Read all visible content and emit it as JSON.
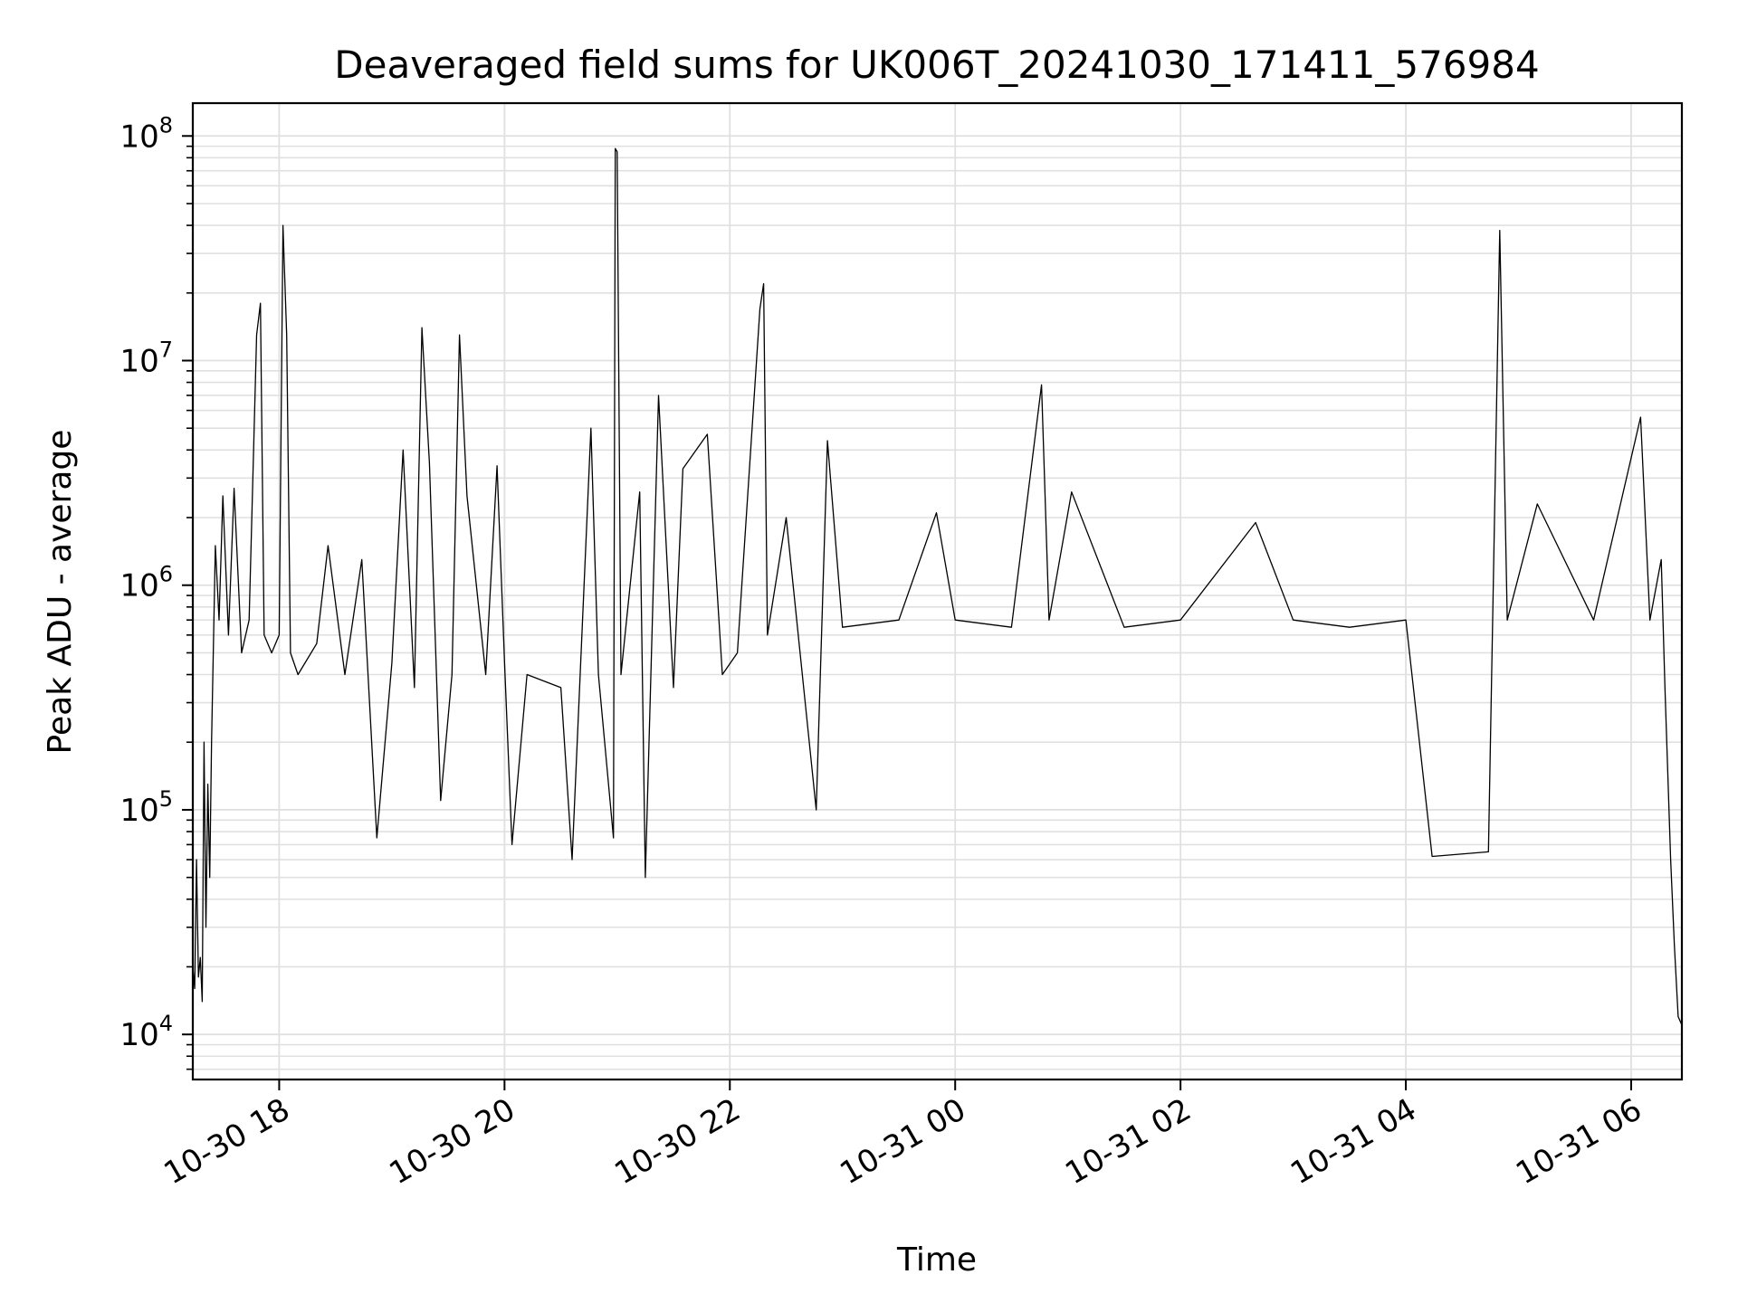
{
  "chart_data": {
    "type": "line",
    "title": "Deaveraged field sums for UK006T_20241030_171411_576984",
    "xlabel": "Time",
    "ylabel": "Peak ADU - average",
    "y_scale": "log",
    "ylim": [
      6300,
      140000000
    ],
    "xlim": [
      "2024-10-30 17:14",
      "2024-10-31 06:27"
    ],
    "grid": true,
    "grid_minor": true,
    "line_color": "#000000",
    "grid_color": "#e0e0e0",
    "x_ticks": [
      {
        "t": "2024-10-30 18:00",
        "label": "10-30 18"
      },
      {
        "t": "2024-10-30 20:00",
        "label": "10-30 20"
      },
      {
        "t": "2024-10-30 22:00",
        "label": "10-30 22"
      },
      {
        "t": "2024-10-31 00:00",
        "label": "10-31 00"
      },
      {
        "t": "2024-10-31 02:00",
        "label": "10-31 02"
      },
      {
        "t": "2024-10-31 04:00",
        "label": "10-31 04"
      },
      {
        "t": "2024-10-31 06:00",
        "label": "10-31 06"
      }
    ],
    "y_ticks": [
      {
        "value": 10000,
        "base": "10",
        "exp": "4"
      },
      {
        "value": 100000,
        "base": "10",
        "exp": "5"
      },
      {
        "value": 1000000,
        "base": "10",
        "exp": "6"
      },
      {
        "value": 10000000,
        "base": "10",
        "exp": "7"
      },
      {
        "value": 100000000,
        "base": "10",
        "exp": "8"
      }
    ],
    "series": [
      {
        "points": [
          [
            "2024-10-30 17:14",
            20000
          ],
          [
            "2024-10-30 17:15",
            16000
          ],
          [
            "2024-10-30 17:16",
            60000
          ],
          [
            "2024-10-30 17:17",
            18000
          ],
          [
            "2024-10-30 17:18",
            22000
          ],
          [
            "2024-10-30 17:19",
            14000
          ],
          [
            "2024-10-30 17:20",
            200000
          ],
          [
            "2024-10-30 17:21",
            30000
          ],
          [
            "2024-10-30 17:22",
            130000
          ],
          [
            "2024-10-30 17:23",
            50000
          ],
          [
            "2024-10-30 17:24",
            200000
          ],
          [
            "2024-10-30 17:26",
            1500000
          ],
          [
            "2024-10-30 17:28",
            700000
          ],
          [
            "2024-10-30 17:30",
            2500000
          ],
          [
            "2024-10-30 17:33",
            600000
          ],
          [
            "2024-10-30 17:36",
            2700000
          ],
          [
            "2024-10-30 17:40",
            500000
          ],
          [
            "2024-10-30 17:44",
            700000
          ],
          [
            "2024-10-30 17:48",
            13000000
          ],
          [
            "2024-10-30 17:50",
            18000000
          ],
          [
            "2024-10-30 17:52",
            600000
          ],
          [
            "2024-10-30 17:56",
            500000
          ],
          [
            "2024-10-30 18:00",
            600000
          ],
          [
            "2024-10-30 18:02",
            40000000
          ],
          [
            "2024-10-30 18:04",
            13000000
          ],
          [
            "2024-10-30 18:06",
            500000
          ],
          [
            "2024-10-30 18:10",
            400000
          ],
          [
            "2024-10-30 18:20",
            550000
          ],
          [
            "2024-10-30 18:26",
            1500000
          ],
          [
            "2024-10-30 18:35",
            400000
          ],
          [
            "2024-10-30 18:44",
            1300000
          ],
          [
            "2024-10-30 18:52",
            75000
          ],
          [
            "2024-10-30 19:00",
            450000
          ],
          [
            "2024-10-30 19:06",
            4000000
          ],
          [
            "2024-10-30 19:12",
            350000
          ],
          [
            "2024-10-30 19:16",
            14000000
          ],
          [
            "2024-10-30 19:20",
            3500000
          ],
          [
            "2024-10-30 19:26",
            110000
          ],
          [
            "2024-10-30 19:32",
            400000
          ],
          [
            "2024-10-30 19:36",
            13000000
          ],
          [
            "2024-10-30 19:40",
            2500000
          ],
          [
            "2024-10-30 19:50",
            400000
          ],
          [
            "2024-10-30 19:56",
            3400000
          ],
          [
            "2024-10-30 20:00",
            450000
          ],
          [
            "2024-10-30 20:04",
            70000
          ],
          [
            "2024-10-30 20:12",
            400000
          ],
          [
            "2024-10-30 20:30",
            350000
          ],
          [
            "2024-10-30 20:36",
            60000
          ],
          [
            "2024-10-30 20:46",
            5000000
          ],
          [
            "2024-10-30 20:50",
            400000
          ],
          [
            "2024-10-30 20:58",
            75000
          ],
          [
            "2024-10-30 20:59",
            88000000
          ],
          [
            "2024-10-30 21:00",
            85000000
          ],
          [
            "2024-10-30 21:02",
            400000
          ],
          [
            "2024-10-30 21:12",
            2600000
          ],
          [
            "2024-10-30 21:15",
            50000
          ],
          [
            "2024-10-30 21:22",
            7000000
          ],
          [
            "2024-10-30 21:30",
            350000
          ],
          [
            "2024-10-30 21:35",
            3300000
          ],
          [
            "2024-10-30 21:48",
            4700000
          ],
          [
            "2024-10-30 21:56",
            400000
          ],
          [
            "2024-10-30 22:04",
            500000
          ],
          [
            "2024-10-30 22:16",
            17000000
          ],
          [
            "2024-10-30 22:18",
            22000000
          ],
          [
            "2024-10-30 22:20",
            600000
          ],
          [
            "2024-10-30 22:30",
            2000000
          ],
          [
            "2024-10-30 22:46",
            100000
          ],
          [
            "2024-10-30 22:52",
            4400000
          ],
          [
            "2024-10-30 23:00",
            650000
          ],
          [
            "2024-10-30 23:30",
            700000
          ],
          [
            "2024-10-30 23:50",
            2100000
          ],
          [
            "2024-10-31 00:00",
            700000
          ],
          [
            "2024-10-31 00:30",
            650000
          ],
          [
            "2024-10-31 00:46",
            7800000
          ],
          [
            "2024-10-31 00:50",
            700000
          ],
          [
            "2024-10-31 01:02",
            2600000
          ],
          [
            "2024-10-31 01:30",
            650000
          ],
          [
            "2024-10-31 02:00",
            700000
          ],
          [
            "2024-10-31 02:40",
            1900000
          ],
          [
            "2024-10-31 03:00",
            700000
          ],
          [
            "2024-10-31 03:30",
            650000
          ],
          [
            "2024-10-31 04:00",
            700000
          ],
          [
            "2024-10-31 04:14",
            62000
          ],
          [
            "2024-10-31 04:44",
            65000
          ],
          [
            "2024-10-31 04:50",
            38000000
          ],
          [
            "2024-10-31 04:54",
            700000
          ],
          [
            "2024-10-31 05:10",
            2300000
          ],
          [
            "2024-10-31 05:40",
            700000
          ],
          [
            "2024-10-31 06:05",
            5600000
          ],
          [
            "2024-10-31 06:10",
            700000
          ],
          [
            "2024-10-31 06:16",
            1300000
          ],
          [
            "2024-10-31 06:18",
            350000
          ],
          [
            "2024-10-31 06:21",
            60000
          ],
          [
            "2024-10-31 06:23",
            25000
          ],
          [
            "2024-10-31 06:25",
            12000
          ],
          [
            "2024-10-31 06:27",
            11000
          ]
        ]
      }
    ]
  }
}
